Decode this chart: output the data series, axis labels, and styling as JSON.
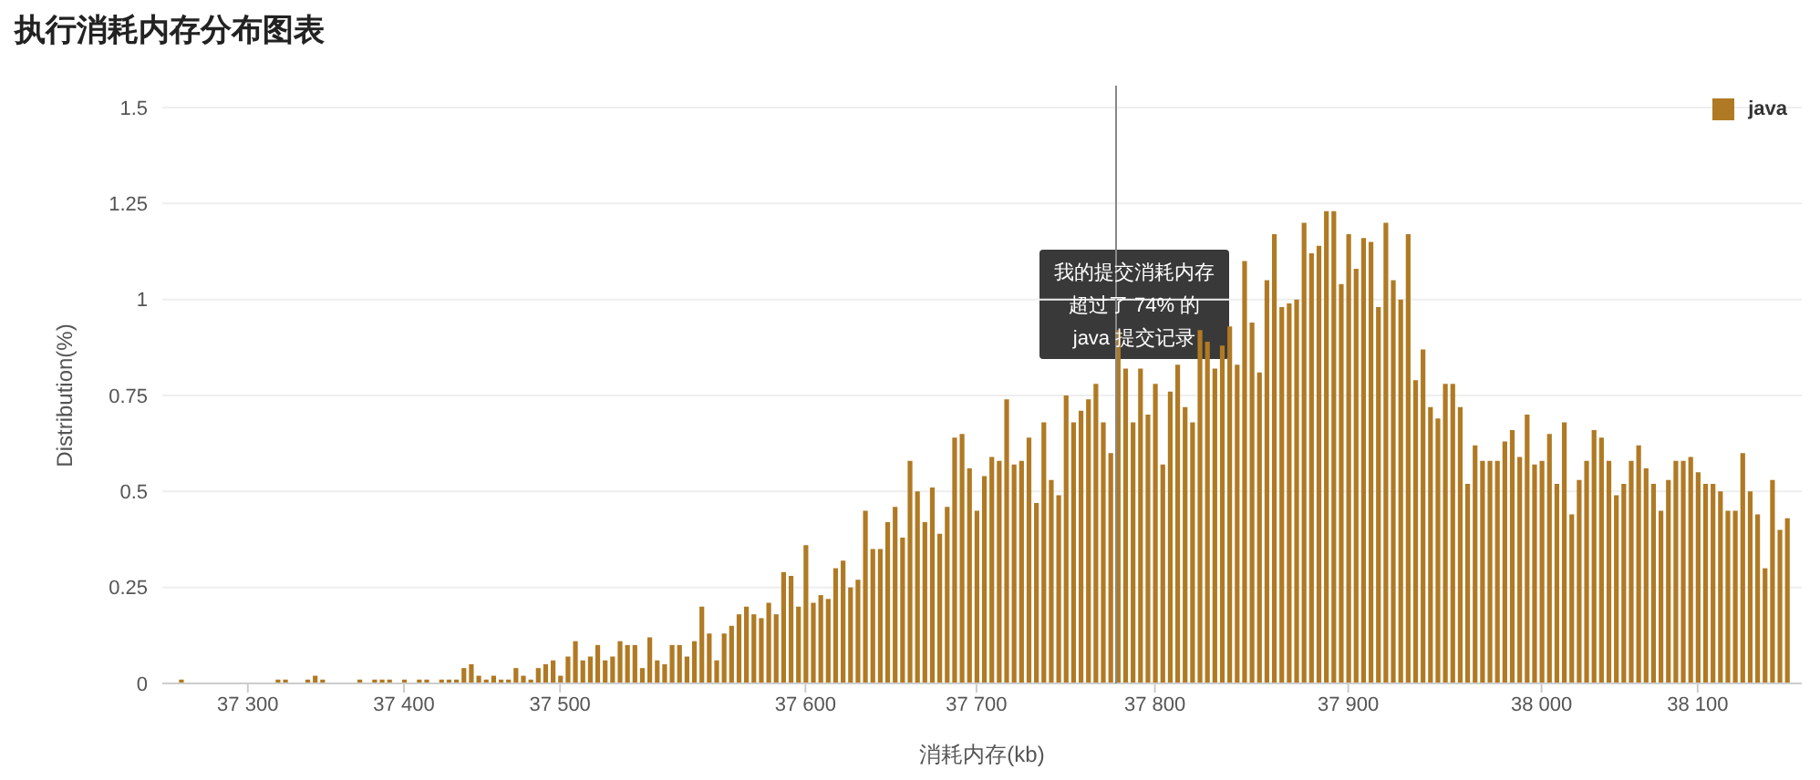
{
  "chart_data": {
    "type": "bar",
    "title": "执行消耗内存分布图表",
    "xlabel": "消耗内存(kb)",
    "ylabel": "Distribution(%)",
    "categories": [
      null,
      null,
      null,
      null,
      null,
      null,
      null,
      null,
      null,
      null,
      null,
      "37 300",
      null,
      null,
      null,
      null,
      null,
      null,
      null,
      null,
      null,
      null,
      null,
      null,
      null,
      null,
      null,
      null,
      null,
      null,
      null,
      null,
      "37 400",
      null,
      null,
      null,
      null,
      null,
      null,
      null,
      null,
      null,
      null,
      null,
      null,
      null,
      null,
      null,
      null,
      null,
      null,
      null,
      null,
      "37 500",
      null,
      null,
      null,
      null,
      null,
      null,
      null,
      null,
      null,
      null,
      null,
      null,
      null,
      null,
      null,
      null,
      null,
      null,
      null,
      null,
      null,
      null,
      null,
      null,
      null,
      null,
      null,
      null,
      null,
      null,
      null,
      null,
      "37 600",
      null,
      null,
      null,
      null,
      null,
      null,
      null,
      null,
      null,
      null,
      null,
      null,
      null,
      null,
      null,
      null,
      null,
      null,
      null,
      null,
      null,
      null,
      "37 700",
      null,
      null,
      null,
      null,
      null,
      null,
      null,
      null,
      null,
      null,
      null,
      null,
      null,
      null,
      null,
      null,
      null,
      null,
      null,
      null,
      null,
      null,
      null,
      "37 800",
      null,
      null,
      null,
      null,
      null,
      null,
      null,
      null,
      null,
      null,
      null,
      null,
      null,
      null,
      null,
      null,
      null,
      null,
      null,
      null,
      null,
      null,
      null,
      null,
      null,
      "37 900",
      null,
      null,
      null,
      null,
      null,
      null,
      null,
      null,
      null,
      null,
      null,
      null,
      null,
      null,
      null,
      null,
      null,
      null,
      null,
      null,
      null,
      null,
      null,
      null,
      null,
      "38 000",
      null,
      null,
      null,
      null,
      null,
      null,
      null,
      null,
      null,
      null,
      null,
      null,
      null,
      null,
      null,
      null,
      null,
      null,
      null,
      null,
      "38 100",
      null,
      null,
      null,
      null,
      null,
      null,
      null,
      null,
      null,
      null,
      null,
      null
    ],
    "series": [
      {
        "name": "java",
        "color": "#b07a24",
        "values": [
          0,
          0,
          0.01,
          0,
          0,
          0,
          0,
          0,
          0,
          0,
          0,
          0,
          0,
          0,
          0,
          0.01,
          0.01,
          0,
          0,
          0.01,
          0.02,
          0.01,
          0,
          0,
          0,
          0,
          0.01,
          0,
          0.01,
          0.01,
          0.01,
          0,
          0.01,
          0,
          0.01,
          0.01,
          0,
          0.01,
          0.01,
          0.01,
          0.04,
          0.05,
          0.02,
          0.01,
          0.02,
          0.01,
          0.01,
          0.04,
          0.02,
          0.01,
          0.04,
          0.05,
          0.06,
          0.02,
          0.07,
          0.11,
          0.06,
          0.07,
          0.1,
          0.06,
          0.07,
          0.11,
          0.1,
          0.1,
          0.04,
          0.12,
          0.06,
          0.05,
          0.1,
          0.1,
          0.07,
          0.11,
          0.2,
          0.13,
          0.06,
          0.13,
          0.15,
          0.18,
          0.2,
          0.18,
          0.17,
          0.21,
          0.18,
          0.29,
          0.28,
          0.2,
          0.36,
          0.21,
          0.23,
          0.22,
          0.3,
          0.32,
          0.25,
          0.27,
          0.45,
          0.35,
          0.35,
          0.42,
          0.46,
          0.38,
          0.58,
          0.5,
          0.42,
          0.51,
          0.39,
          0.46,
          0.64,
          0.65,
          0.56,
          0.45,
          0.54,
          0.59,
          0.58,
          0.74,
          0.57,
          0.58,
          0.64,
          0.47,
          0.68,
          0.53,
          0.49,
          0.75,
          0.68,
          0.71,
          0.74,
          0.78,
          0.68,
          0.6,
          0.92,
          0.82,
          0.68,
          0.82,
          0.7,
          0.78,
          0.57,
          0.76,
          0.83,
          0.72,
          0.68,
          0.92,
          0.89,
          0.82,
          0.88,
          0.93,
          0.83,
          1.1,
          0.94,
          0.81,
          1.05,
          1.17,
          0.98,
          0.99,
          1.0,
          1.2,
          1.12,
          1.14,
          1.23,
          1.23,
          1.04,
          1.17,
          1.08,
          1.16,
          1.15,
          0.98,
          1.2,
          1.05,
          1.0,
          1.17,
          0.79,
          0.87,
          0.72,
          0.69,
          0.78,
          0.78,
          0.72,
          0.52,
          0.62,
          0.58,
          0.58,
          0.58,
          0.63,
          0.66,
          0.59,
          0.7,
          0.57,
          0.58,
          0.65,
          0.52,
          0.68,
          0.44,
          0.53,
          0.58,
          0.66,
          0.64,
          0.58,
          0.49,
          0.52,
          0.58,
          0.62,
          0.56,
          0.52,
          0.45,
          0.53,
          0.58,
          0.58,
          0.59,
          0.55,
          0.52,
          0.52,
          0.5,
          0.45,
          0.45,
          0.6,
          0.5,
          0.44,
          0.3,
          0.53,
          0.4,
          0.43
        ]
      }
    ],
    "ylim": [
      0,
      1.5
    ],
    "yticks": [
      0,
      {
        "value": 0.25,
        "label": "0.25"
      },
      {
        "value": 0.5,
        "label": "0.5"
      },
      {
        "value": 0.75,
        "label": "0.75"
      },
      1,
      {
        "value": 1.25,
        "label": "1.25"
      },
      {
        "value": 1.5,
        "label": "1.5"
      }
    ],
    "grid": "y",
    "legend": "top right",
    "annotations": [
      "我的提交消耗内存",
      "超过了 74% 的",
      "java 提交记录"
    ]
  }
}
